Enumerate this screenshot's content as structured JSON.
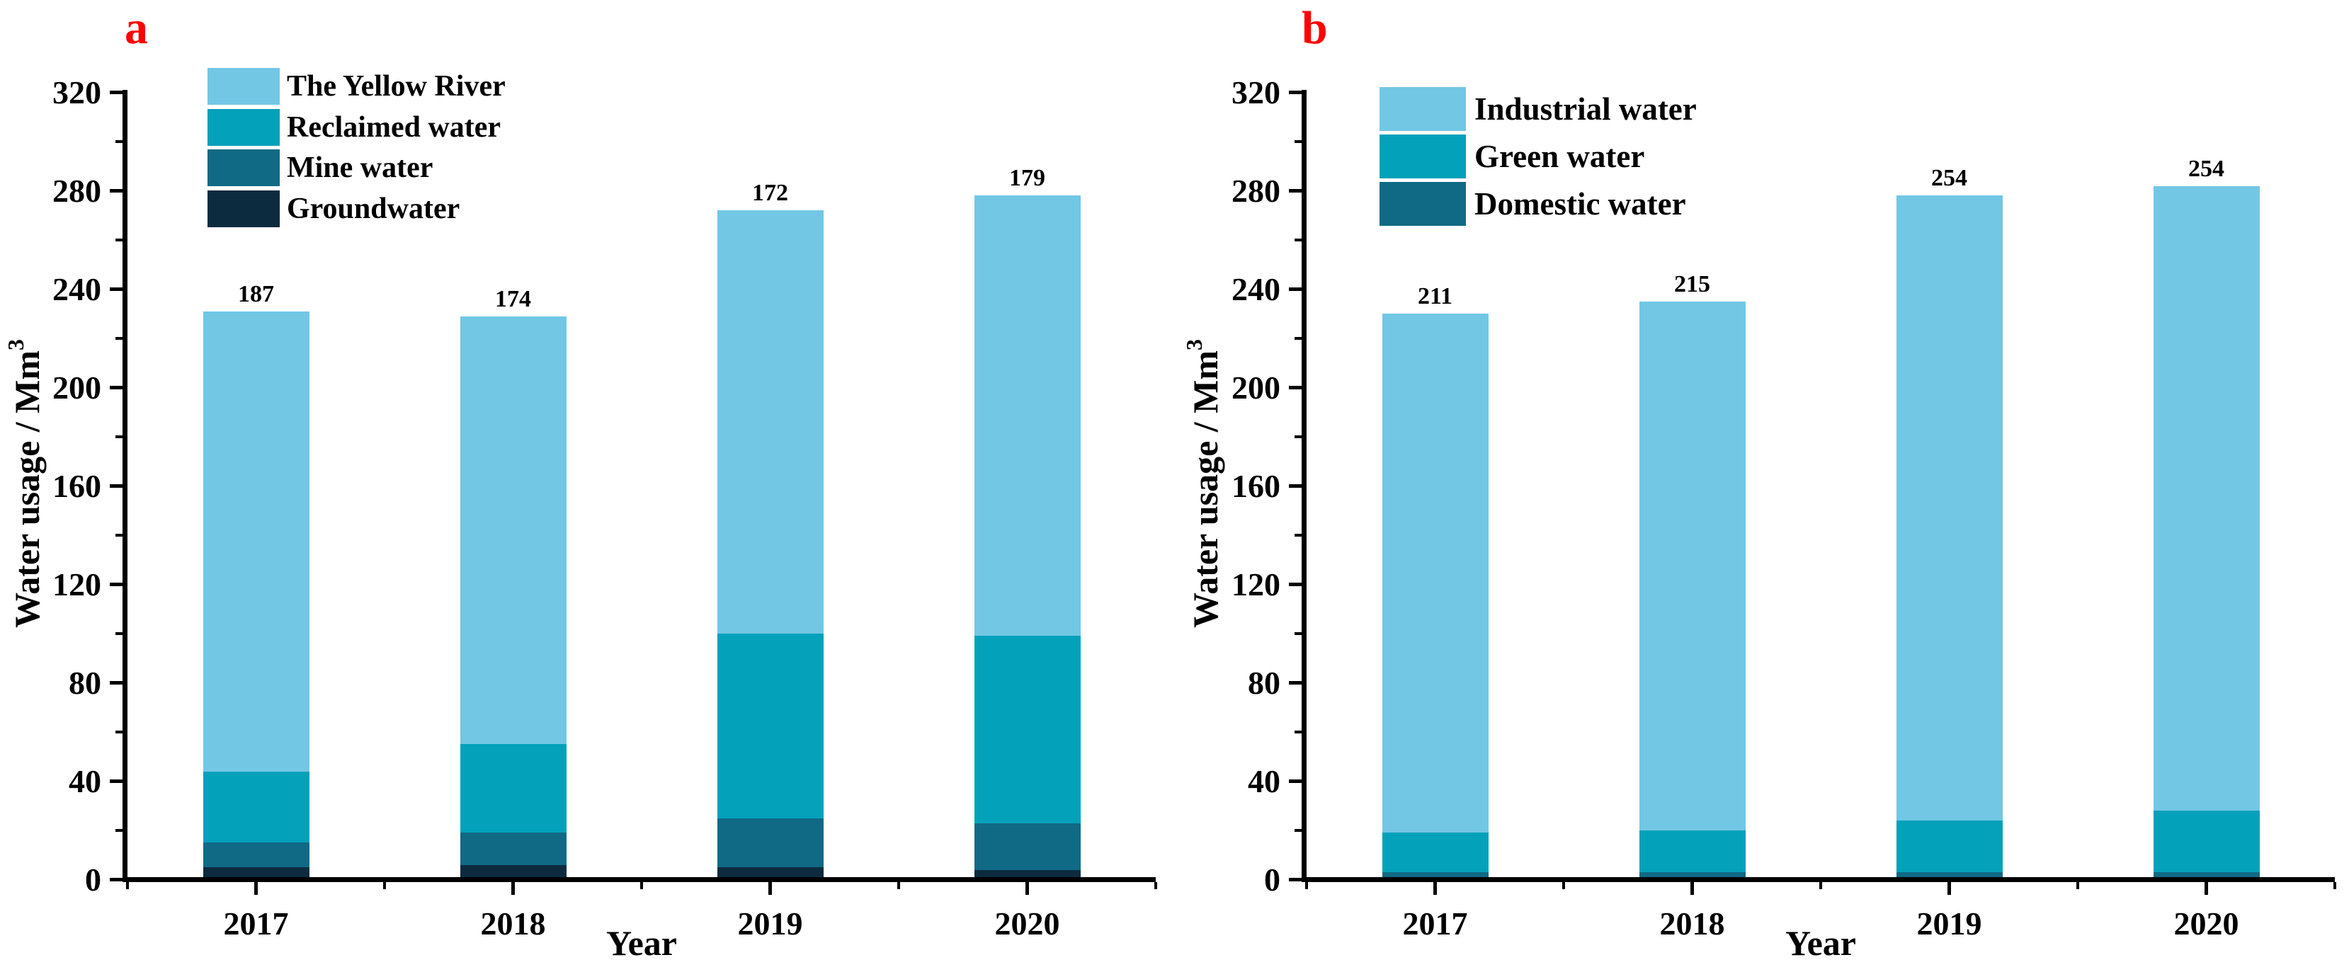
{
  "figure_background": "#FFFFFF",
  "text_color": "#000000",
  "panel_label_color": "#FB0303",
  "chart_data": [
    {
      "panel_label": "a",
      "type": "bar",
      "stacked": true,
      "categories": [
        "2017",
        "2018",
        "2019",
        "2020"
      ],
      "series": [
        {
          "name": "Groundwater",
          "color": "#0C2B3F",
          "values": [
            4,
            5,
            4,
            3
          ]
        },
        {
          "name": "Mine water",
          "color": "#106A85",
          "values": [
            10,
            13,
            20,
            19
          ]
        },
        {
          "name": "Reclaimed water",
          "color": "#04A1BB",
          "values": [
            29,
            36,
            75,
            76
          ]
        },
        {
          "name": "The Yellow River",
          "color": "#72C7E5",
          "values": [
            187,
            174,
            172,
            179
          ]
        }
      ],
      "stack_totals": [
        230,
        228,
        271,
        277
      ],
      "legend_order": [
        "The Yellow River",
        "Reclaimed water",
        "Mine water",
        "Groundwater"
      ],
      "legend_position": "upper left inside",
      "xlabel": "Year",
      "ylabel": "Water usage / Mm³",
      "ylabel_base": "Water usage / Mm",
      "ylabel_exponent": "3",
      "ylim": [
        0,
        320
      ],
      "y_major_tick_step": 40,
      "y_minor_tick_step": 20,
      "y_tick_labels": [
        "0",
        "40",
        "80",
        "120",
        "160",
        "200",
        "240",
        "280",
        "320"
      ],
      "bar_value_labels": true,
      "grid": false
    },
    {
      "panel_label": "b",
      "type": "bar",
      "stacked": true,
      "categories": [
        "2017",
        "2018",
        "2019",
        "2020"
      ],
      "series": [
        {
          "name": "Domestic water",
          "color": "#106A85",
          "values": [
            2,
            2,
            2,
            2
          ]
        },
        {
          "name": "Green water",
          "color": "#04A1BB",
          "values": [
            16,
            17,
            21,
            25
          ]
        },
        {
          "name": "Industrial water",
          "color": "#72C7E5",
          "values": [
            211,
            215,
            254,
            254
          ]
        }
      ],
      "stack_totals": [
        229,
        234,
        277,
        281
      ],
      "legend_order": [
        "Industrial water",
        "Green water",
        "Domestic water"
      ],
      "legend_position": "upper left inside",
      "xlabel": "Year",
      "ylabel": "Water usage / Mm³",
      "ylabel_base": "Water usage / Mm",
      "ylabel_exponent": "3",
      "ylim": [
        0,
        320
      ],
      "y_major_tick_step": 40,
      "y_minor_tick_step": 20,
      "y_tick_labels": [
        "0",
        "40",
        "80",
        "120",
        "160",
        "200",
        "240",
        "280",
        "320"
      ],
      "bar_value_labels": true,
      "grid": false
    }
  ]
}
